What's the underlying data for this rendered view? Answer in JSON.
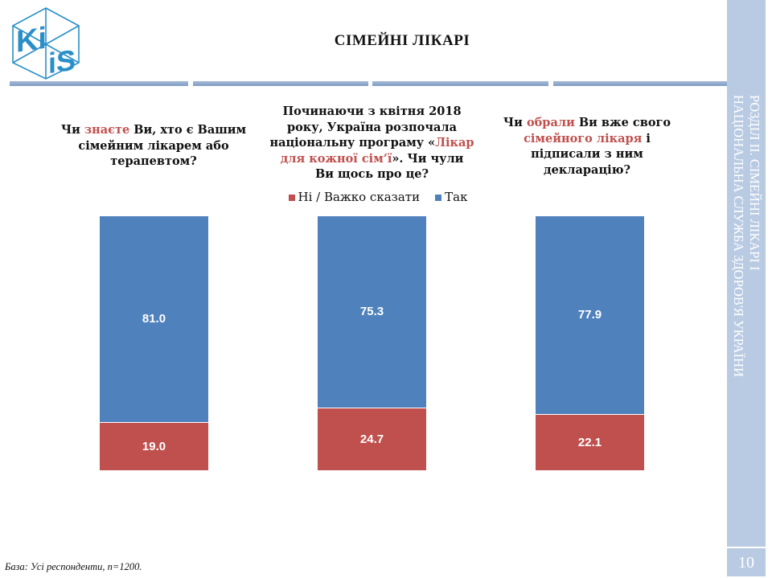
{
  "header": {
    "title": "СІМЕЙНІ ЛІКАРІ",
    "logo_text": "KiiS"
  },
  "sidebar": {
    "line1": "РОЗДІЛ ІІ. СІМЕЙНІ ЛІКАРІ І",
    "line2": "НАЦІОНАЛЬНА СЛУЖБА ЗДОРОВ'Я УКРАЇНИ",
    "page": "10"
  },
  "questions": [
    {
      "parts": [
        {
          "t": "Чи ",
          "hl": false
        },
        {
          "t": "знаєте",
          "hl": true
        },
        {
          "t": " Ви, хто є Вашим сімейним лікарем або терапевтом?",
          "hl": false
        }
      ]
    },
    {
      "parts": [
        {
          "t": "Починаючи з квітня 2018 року, Україна розпочала національну програму «",
          "hl": false
        },
        {
          "t": "Лікар для кожної сім’ї",
          "hl": true
        },
        {
          "t": "». Чи чули Ви щось про це?",
          "hl": false
        }
      ]
    },
    {
      "parts": [
        {
          "t": "Чи ",
          "hl": false
        },
        {
          "t": "обрали",
          "hl": true
        },
        {
          "t": " Ви вже свого ",
          "hl": false
        },
        {
          "t": "сімейного лікаря",
          "hl": true
        },
        {
          "t": " і підписали з ним декларацію?",
          "hl": false
        }
      ]
    }
  ],
  "colors": {
    "no": "#c0504d",
    "yes": "#4f81bd",
    "highlight": "#c0504d"
  },
  "chart_data": {
    "type": "bar",
    "stacked": true,
    "percent": true,
    "categories": [
      "Q1",
      "Q2",
      "Q3"
    ],
    "series": [
      {
        "name": "Ні / Важко сказати",
        "values": [
          19.0,
          24.7,
          22.1
        ],
        "color": "#c0504d"
      },
      {
        "name": "Так",
        "values": [
          81.0,
          75.3,
          77.9
        ],
        "color": "#4f81bd"
      }
    ],
    "ylim": [
      0,
      100
    ],
    "legend": "top-center",
    "grid": false
  },
  "footer": {
    "base": "База: Усі респонденти, n=1200."
  }
}
